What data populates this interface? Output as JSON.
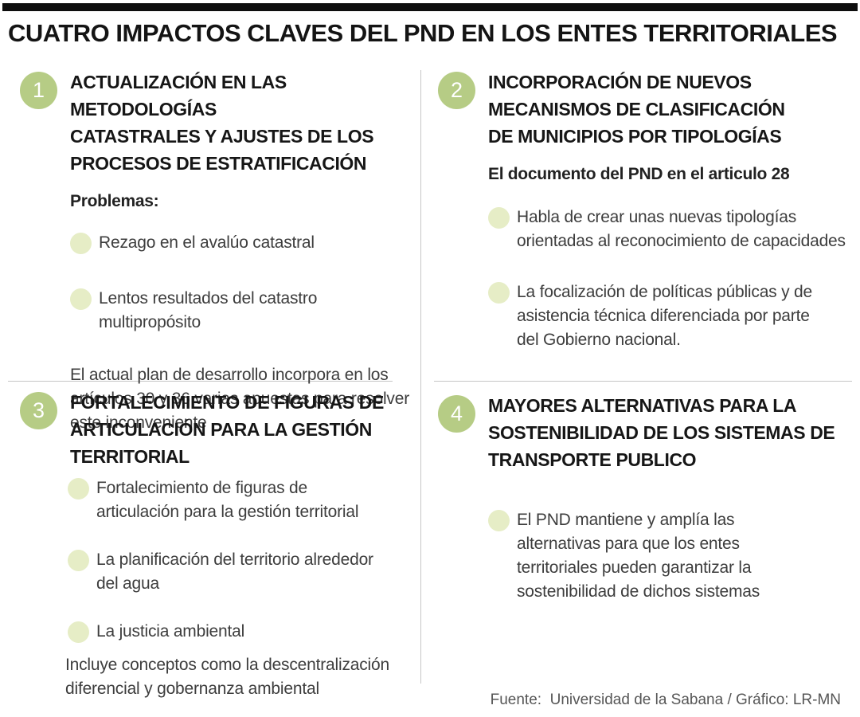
{
  "title": "CUATRO IMPACTOS CLAVES DEL PND EN LOS ENTES TERRITORIALES",
  "colors": {
    "number_circle_green": "#b6cc85",
    "bullet_dot_green": "#e6edc6",
    "top_bar_black": "#0e0e0e",
    "divider_gray": "#c6c6c6"
  },
  "sections": [
    {
      "number": "1",
      "heading": "ACTUALIZACIÓN EN LAS METODOLOGÍAS\nCATASTRALES Y AJUSTES DE LOS\nPROCESOS DE ESTRATIFICACIÓN",
      "lead": "Problemas:",
      "bullets": [
        "Rezago en el avalúo catastral",
        "Lentos resultados del catastro multipropósito"
      ],
      "note": "El actual plan de desarrollo incorpora en los\nartículos 30 y 36 varias apuestas para resolver\neste inconveniente"
    },
    {
      "number": "2",
      "heading": "INCORPORACIÓN DE NUEVOS\nMECANISMOS DE CLASIFICACIÓN\nDE MUNICIPIOS POR TIPOLOGÍAS",
      "lead": "El documento del PND en el articulo 28",
      "bullets": [
        "Habla de crear unas nuevas tipologías\norientadas al reconocimiento de capacidades",
        "La focalización de políticas públicas y de\nasistencia técnica diferenciada por parte\ndel Gobierno nacional."
      ]
    },
    {
      "number": "3",
      "heading": "FORTALECIMIENTO DE FIGURAS DE\nARTICULACIÓN PARA LA GESTIÓN\nTERRITORIAL",
      "bullets": [
        "Fortalecimiento de figuras de\narticulación para la gestión territorial",
        "La planificación del territorio alrededor\ndel agua",
        "La justicia ambiental"
      ],
      "note": "Incluye conceptos como la descentralización\ndiferencial y gobernanza ambiental"
    },
    {
      "number": "4",
      "heading": "MAYORES ALTERNATIVAS PARA LA\nSOSTENIBILIDAD DE LOS SISTEMAS DE\nTRANSPORTE PUBLICO",
      "bullets": [
        "El PND mantiene y amplía las\nalternativas para que los entes\nterritoriales pueden garantizar la\nsostenibilidad de dichos sistemas"
      ]
    }
  ],
  "footer": {
    "source": "Fuente:  Universidad de la Sabana / Gráfico: LR-MN"
  }
}
